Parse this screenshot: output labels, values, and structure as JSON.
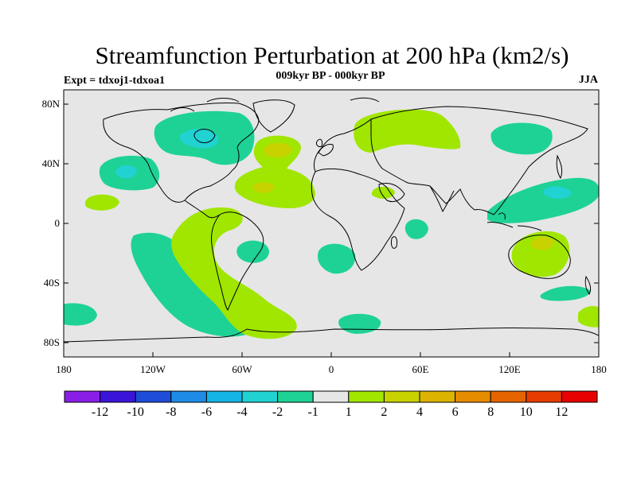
{
  "title": "Streamfunction Perturbation at 200 hPa (km2/s)",
  "subtitle": "009kyr BP - 000kyr BP",
  "experiment": "Expt = tdxoj1-tdxoa1",
  "season": "JJA",
  "lat_ticks": [
    "80N",
    "40N",
    "0",
    "40S",
    "80S"
  ],
  "lon_ticks": [
    "180",
    "120W",
    "60W",
    "0",
    "60E",
    "120E",
    "180"
  ],
  "colorbar": {
    "labels": [
      "-12",
      "-10",
      "-8",
      "-6",
      "-4",
      "-2",
      "-1",
      "1",
      "2",
      "4",
      "6",
      "8",
      "10",
      "12"
    ],
    "colors": [
      "#8a1ee6",
      "#3a14d8",
      "#1e4dd8",
      "#1e8ce6",
      "#15b4e6",
      "#20d2d2",
      "#1ed296",
      "#e6e6e6",
      "#a0e600",
      "#c8d200",
      "#dcb400",
      "#e68c00",
      "#e66400",
      "#e63c00",
      "#e60000"
    ]
  },
  "regions": [
    {
      "level": "-1",
      "label": "north-america-low"
    },
    {
      "level": "-2",
      "label": "hudson-bay-core"
    },
    {
      "level": "-1",
      "label": "north-pacific-low"
    },
    {
      "level": "-2",
      "label": "north-pacific-core"
    },
    {
      "level": "2",
      "label": "north-atlantic-high"
    },
    {
      "level": "4",
      "label": "north-atlantic-core"
    },
    {
      "level": "2",
      "label": "tropical-atlantic-high"
    },
    {
      "level": "4",
      "label": "tropical-atlantic-core"
    },
    {
      "level": "2",
      "label": "siberia-high"
    },
    {
      "level": "-1",
      "label": "east-siberia-low"
    },
    {
      "level": "-1",
      "label": "west-pacific-low"
    },
    {
      "level": "-2",
      "label": "west-pacific-core"
    },
    {
      "level": "2",
      "label": "australia-high"
    },
    {
      "level": "4",
      "label": "australia-core"
    },
    {
      "level": "-1",
      "label": "south-pacific-band"
    },
    {
      "level": "2",
      "label": "south-america-high"
    },
    {
      "level": "-1",
      "label": "south-atlantic-low"
    },
    {
      "level": "-1",
      "label": "southern-ocean-low"
    },
    {
      "level": "2",
      "label": "south-pacific-high"
    },
    {
      "level": "-1",
      "label": "east-africa-low"
    },
    {
      "level": "-1",
      "label": "south-indian-low"
    },
    {
      "level": "2",
      "label": "north-indian-high"
    }
  ]
}
